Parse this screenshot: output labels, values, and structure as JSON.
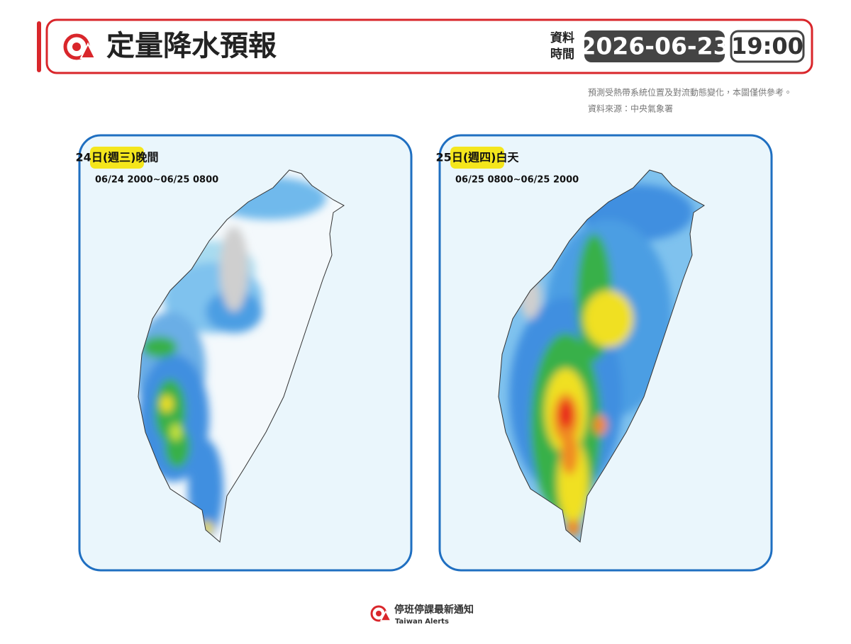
{
  "header": {
    "title": "定量降水預報",
    "time_label_1": "資料",
    "time_label_2": "時間",
    "date": "2026-06-23",
    "time": "19:00"
  },
  "notes": [
    "預測受熱帶系統位置及對流動態變化，本圖僅供參考。",
    "資料來源：中央氣象署"
  ],
  "panels": [
    {
      "label": "24日(週三)晚間",
      "range": "06/24 2000~06/25 0800"
    },
    {
      "label": "25日(週四)白天",
      "range": "06/25 0800~06/25 2000"
    }
  ],
  "footer": {
    "brand": "停班停課最新通知",
    "brand_en": "Taiwan Alerts"
  }
}
